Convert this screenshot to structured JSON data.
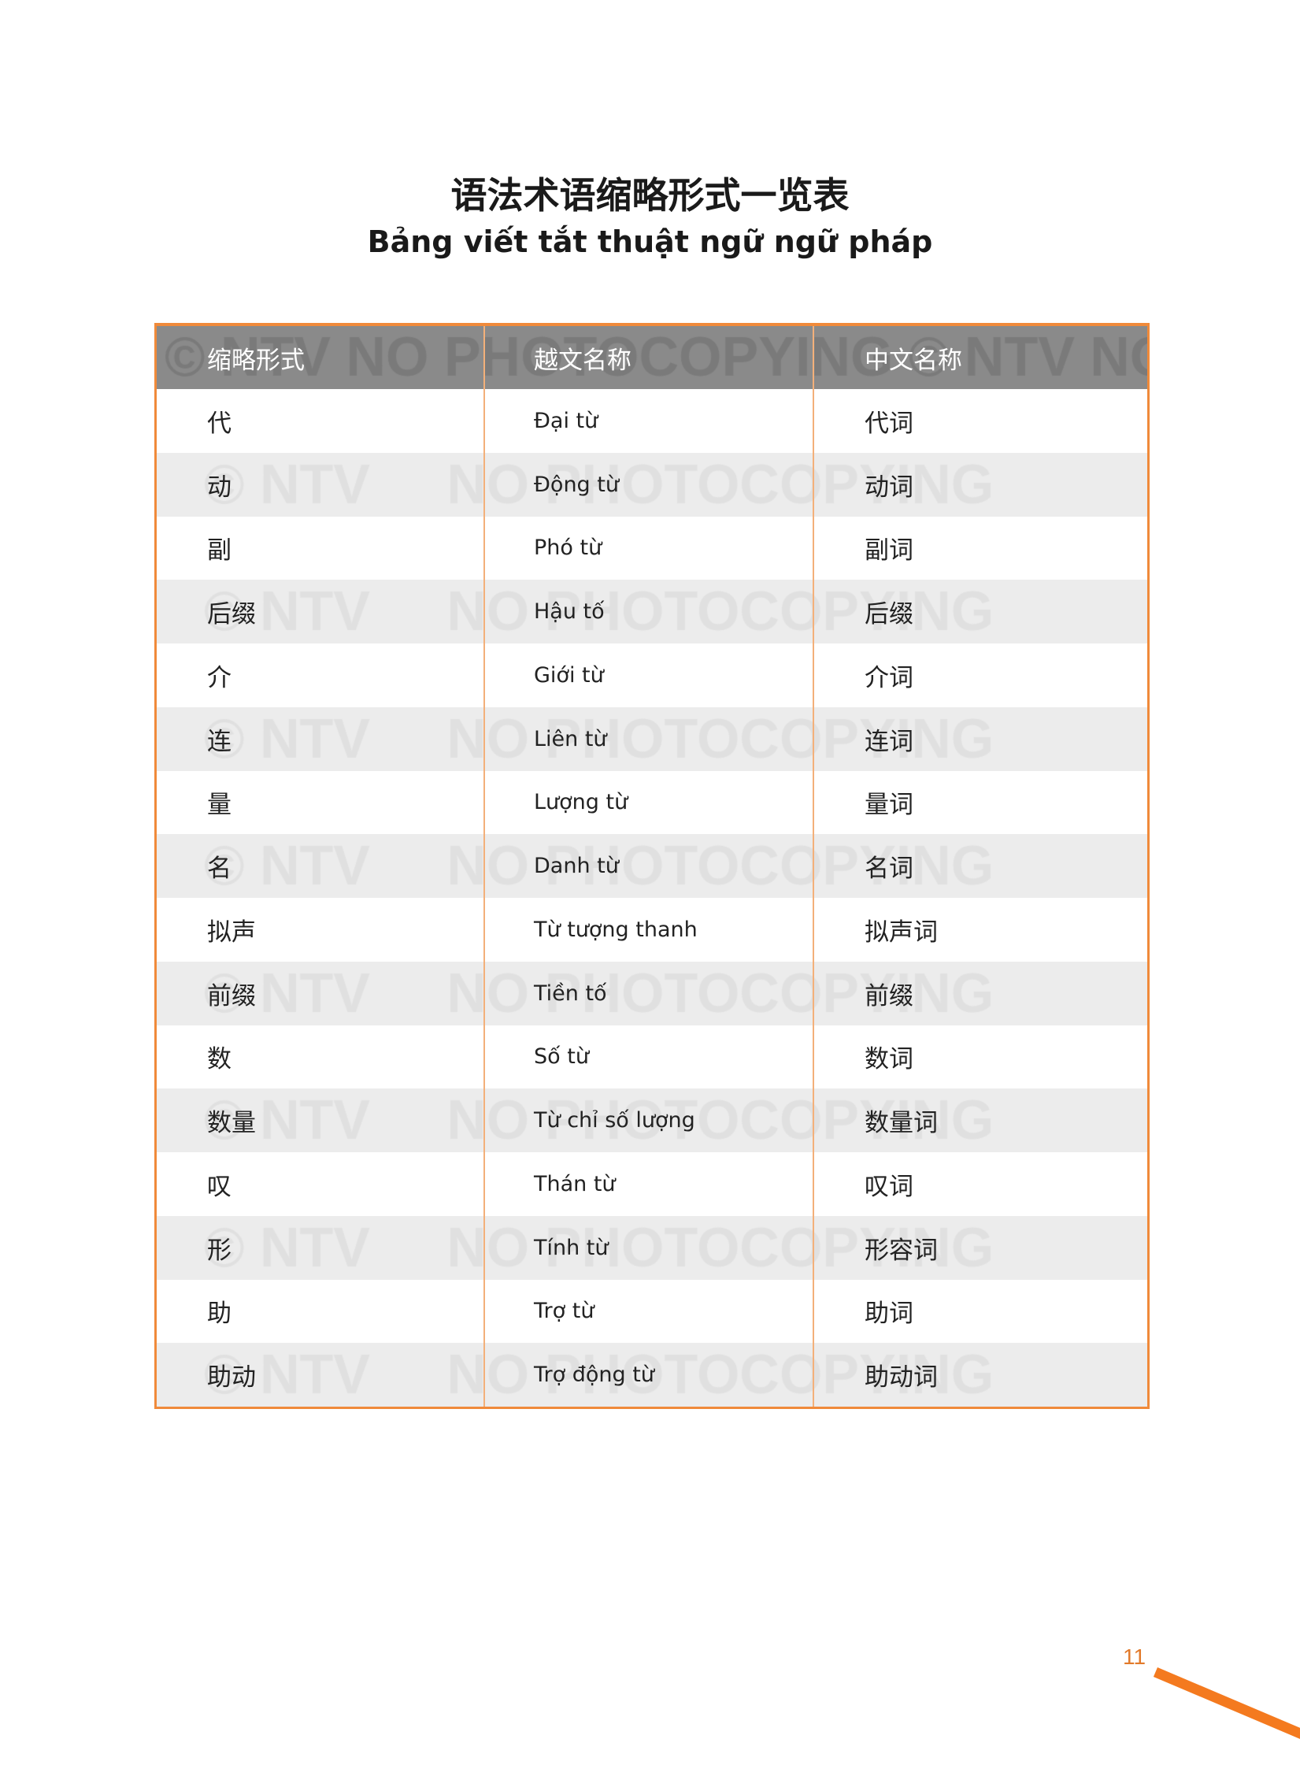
{
  "title_zh": "语法术语缩略形式一览表",
  "title_vi": "Bảng viết tắt thuật ngữ ngữ pháp",
  "watermark": "© NTV NO PHOTOCOPYING © NTV NO",
  "colors": {
    "accent": "#f08a3a",
    "header_bg": "#8a8a8a",
    "alt_row": "#ececec"
  },
  "table": {
    "headers": [
      "缩略形式",
      "越文名称",
      "中文名称"
    ],
    "rows": [
      [
        "代",
        "Đại từ",
        "代词"
      ],
      [
        "动",
        "Động từ",
        "动词"
      ],
      [
        "副",
        "Phó từ",
        "副词"
      ],
      [
        "后缀",
        "Hậu tố",
        "后缀"
      ],
      [
        "介",
        "Giới từ",
        "介词"
      ],
      [
        "连",
        "Liên từ",
        "连词"
      ],
      [
        "量",
        "Lượng từ",
        "量词"
      ],
      [
        "名",
        "Danh từ",
        "名词"
      ],
      [
        "拟声",
        "Từ tượng thanh",
        "拟声词"
      ],
      [
        "前缀",
        "Tiền tố",
        "前缀"
      ],
      [
        "数",
        "Số từ",
        "数词"
      ],
      [
        "数量",
        "Từ chỉ số lượng",
        "数量词"
      ],
      [
        "叹",
        "Thán từ",
        "叹词"
      ],
      [
        "形",
        "Tính từ",
        "形容词"
      ],
      [
        "助",
        "Trợ từ",
        "助词"
      ],
      [
        "助动",
        "Trợ động từ",
        "助动词"
      ]
    ]
  },
  "page_number": "11"
}
